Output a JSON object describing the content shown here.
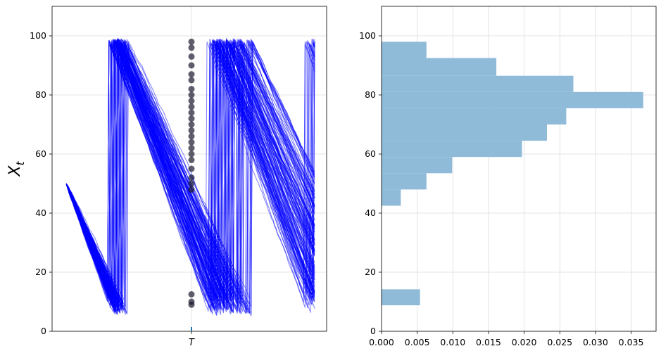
{
  "chart_data": [
    {
      "type": "line",
      "ylabel": "X",
      "ylabel_sub": "t",
      "ylim": [
        0,
        110
      ],
      "yticks": [
        0,
        20,
        40,
        60,
        80,
        100
      ],
      "xtick_label": "T",
      "grid": true,
      "line_color": "#0000ff",
      "marker_color": "#1a1a2e",
      "sample_paths": {
        "count": 150,
        "start_value": 50,
        "floor_range": [
          5,
          12
        ],
        "reset_range": [
          97,
          99
        ],
        "decline_slope_range": [
          1.0,
          1.25
        ]
      },
      "markers_at_T": [
        98,
        96,
        93,
        90,
        87,
        85,
        82,
        80,
        78,
        76,
        74,
        72,
        70,
        68,
        66,
        64,
        62,
        60,
        58,
        55,
        52,
        50,
        48,
        12.5,
        10,
        9
      ]
    },
    {
      "type": "bar",
      "orientation": "horizontal",
      "ylim": [
        0,
        110
      ],
      "xlim": [
        0,
        0.0385
      ],
      "yticks": [
        0,
        20,
        40,
        60,
        80,
        100
      ],
      "xticks": [
        "0.000",
        "0.005",
        "0.010",
        "0.015",
        "0.020",
        "0.025",
        "0.030",
        "0.035"
      ],
      "xtick_values": [
        0,
        0.005,
        0.01,
        0.015,
        0.02,
        0.025,
        0.03,
        0.035
      ],
      "grid": true,
      "bar_color": "#8fbbd9",
      "bins": [
        {
          "y0": 8.8,
          "y1": 14.2,
          "value": 0.0054
        },
        {
          "y0": 42.5,
          "y1": 48.0,
          "value": 0.0027
        },
        {
          "y0": 48.0,
          "y1": 53.5,
          "value": 0.0063
        },
        {
          "y0": 53.5,
          "y1": 59.0,
          "value": 0.0099
        },
        {
          "y0": 59.0,
          "y1": 64.5,
          "value": 0.0197
        },
        {
          "y0": 64.5,
          "y1": 70.0,
          "value": 0.0232
        },
        {
          "y0": 70.0,
          "y1": 75.5,
          "value": 0.0259
        },
        {
          "y0": 75.5,
          "y1": 81.0,
          "value": 0.0367
        },
        {
          "y0": 81.0,
          "y1": 86.5,
          "value": 0.0269
        },
        {
          "y0": 86.5,
          "y1": 92.5,
          "value": 0.0161
        },
        {
          "y0": 92.5,
          "y1": 98.0,
          "value": 0.0063
        }
      ]
    }
  ]
}
